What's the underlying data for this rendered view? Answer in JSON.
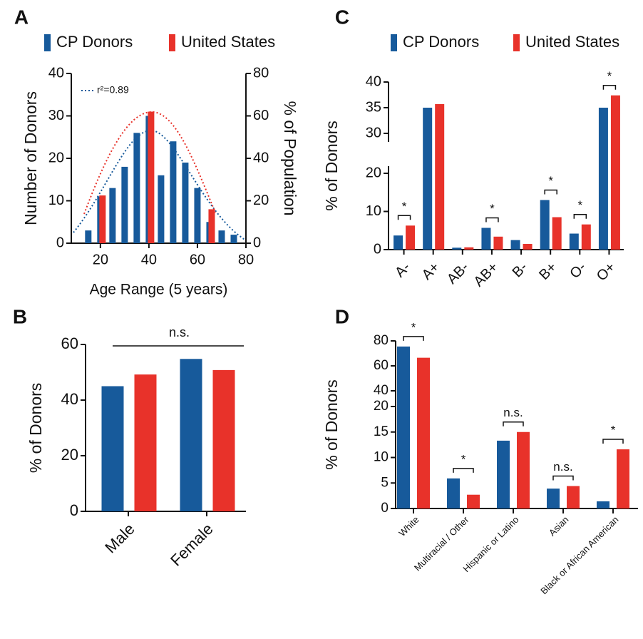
{
  "chart_data": [
    {
      "type": "bar",
      "panel": "A",
      "x": [
        15,
        20,
        25,
        30,
        35,
        40,
        45,
        50,
        55,
        60,
        65,
        70,
        75
      ],
      "xlim": [
        8,
        80
      ],
      "xticks": [
        20,
        40,
        60,
        80
      ],
      "xlabel": "Age Range (5 years)",
      "ylabel": "Number of Donors",
      "y2label": "% of Population",
      "ylim": [
        0,
        40
      ],
      "yticks": [
        0,
        10,
        20,
        30,
        40
      ],
      "y2lim": [
        0,
        80
      ],
      "y2ticks": [
        0,
        20,
        40,
        60,
        80
      ],
      "fit_label": "r²=0.89",
      "series": [
        {
          "name": "CP Donors",
          "color": "#175a9b",
          "values": [
            3,
            11,
            13,
            18,
            26,
            30,
            16,
            24,
            19,
            13,
            5,
            3,
            2
          ]
        },
        {
          "name": "United States",
          "color": "#e8322a",
          "axis": "y2",
          "values": [
            null,
            22.5,
            null,
            null,
            null,
            62,
            null,
            null,
            null,
            null,
            16,
            null,
            null
          ]
        }
      ]
    },
    {
      "type": "bar",
      "panel": "B",
      "categories": [
        "Male",
        "Female"
      ],
      "ylabel": "% of Donors",
      "ylim": [
        0,
        60
      ],
      "yticks": [
        0,
        20,
        40,
        60
      ],
      "overall_significance": "n.s.",
      "series": [
        {
          "name": "CP Donors",
          "color": "#175a9b",
          "values": [
            45,
            54.8
          ]
        },
        {
          "name": "United States",
          "color": "#e8322a",
          "values": [
            49.2,
            50.8
          ]
        }
      ]
    },
    {
      "type": "bar",
      "panel": "C",
      "categories": [
        "A-",
        "A+",
        "AB-",
        "AB+",
        "B-",
        "B+",
        "O-",
        "O+"
      ],
      "ylabel": "% of Donors",
      "ylim": [
        0,
        40
      ],
      "yticks": [
        0,
        10,
        20,
        30,
        35,
        40
      ],
      "axis_break": [
        20,
        30
      ],
      "significance": [
        "*",
        null,
        null,
        "*",
        null,
        "*",
        "*",
        "*"
      ],
      "series": [
        {
          "name": "CP Donors",
          "color": "#175a9b",
          "values": [
            3.7,
            35,
            0.5,
            5.7,
            2.5,
            13,
            4.2,
            35
          ]
        },
        {
          "name": "United States",
          "color": "#e8322a",
          "values": [
            6.3,
            35.7,
            0.6,
            3.4,
            1.5,
            8.5,
            6.6,
            37.4
          ]
        }
      ]
    },
    {
      "type": "bar",
      "panel": "D",
      "categories": [
        "White",
        "Multiracial / Other",
        "Hispanic or Latino",
        "Asian",
        "Black or African American"
      ],
      "ylabel": "% of Donors",
      "ylim": [
        0,
        80
      ],
      "yticks": [
        0,
        5,
        10,
        15,
        20,
        40,
        60,
        80
      ],
      "axis_break": [
        20,
        40
      ],
      "significance": [
        "*",
        "*",
        "n.s.",
        "n.s.",
        "*"
      ],
      "series": [
        {
          "name": "CP Donors",
          "color": "#175a9b",
          "values": [
            75.5,
            5.9,
            13.3,
            3.9,
            1.4
          ]
        },
        {
          "name": "United States",
          "color": "#e8322a",
          "values": [
            66.5,
            2.7,
            15,
            4.4,
            11.6
          ]
        }
      ]
    }
  ]
}
